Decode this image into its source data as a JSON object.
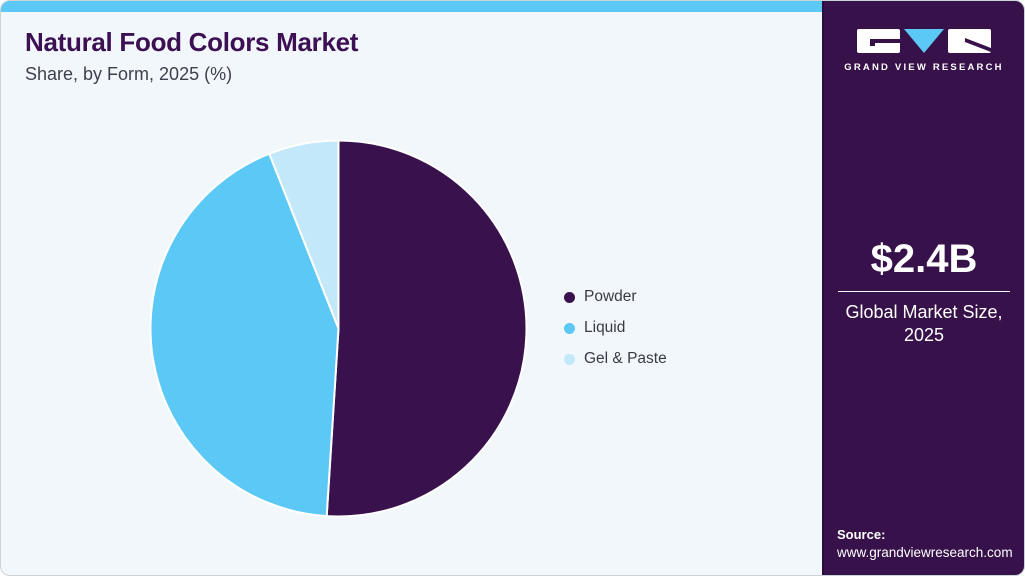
{
  "header": {
    "title": "Natural Food Colors Market",
    "subtitle": "Share, by Form, 2025 (%)"
  },
  "chart_data": {
    "type": "pie",
    "title": "Natural Food Colors Market Share, by Form, 2025 (%)",
    "categories": [
      "Powder",
      "Liquid",
      "Gel & Paste"
    ],
    "values": [
      51,
      43,
      6
    ],
    "unit": "%",
    "colors": [
      "#38114d",
      "#5bc8f5",
      "#c2e8f9"
    ],
    "start_angle_deg": 0,
    "direction": "clockwise",
    "legend_position": "right",
    "slice_separator_color": "#ffffff"
  },
  "sidebar": {
    "logo": {
      "brand_name": "GRAND VIEW RESEARCH",
      "icons": [
        "gvr-g-icon",
        "gvr-v-triangle-icon",
        "gvr-r-icon"
      ]
    },
    "market_size": {
      "value": "$2.4B",
      "label": "Global Market Size, 2025"
    },
    "source": {
      "label": "Source:",
      "url": "www.grandviewresearch.com"
    }
  },
  "theme": {
    "accent_bar_color": "#5bc8f5",
    "sidebar_color": "#371149",
    "background_color": "#f1f7fa",
    "title_color": "#3c1053",
    "body_text_color": "#3f3f4d",
    "sidebar_text_color": "#ffffff"
  }
}
